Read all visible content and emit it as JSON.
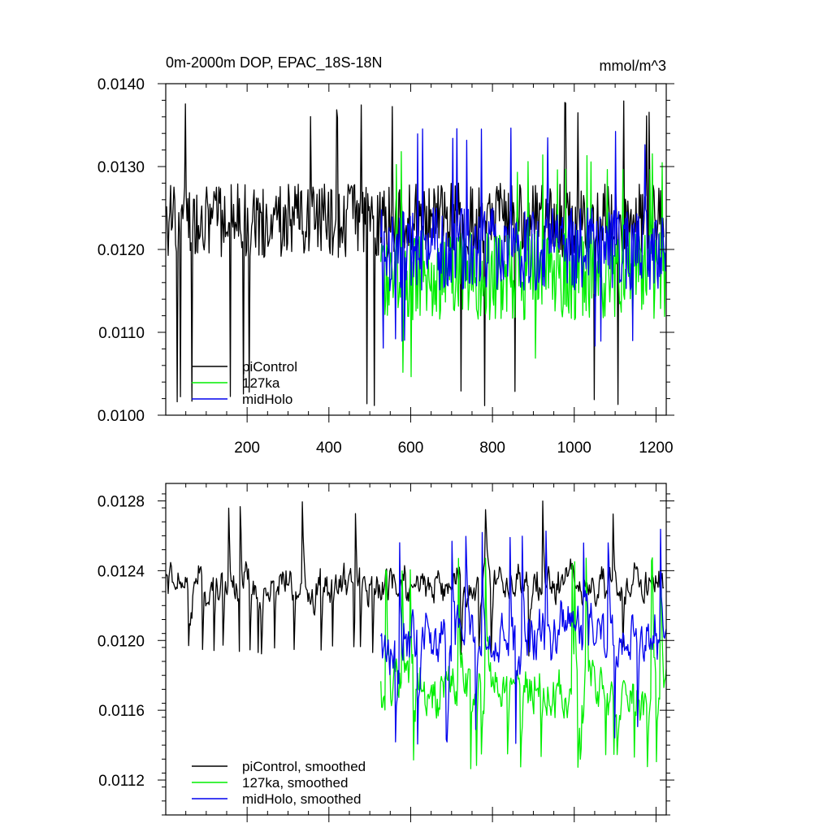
{
  "chart_data": [
    {
      "type": "line",
      "title": "0m-2000m DOP, EPAC_18S-18N",
      "units": "mmol/m^3",
      "xlim": [
        1,
        1225
      ],
      "ylim": [
        0.01,
        0.014
      ],
      "xticks": [
        200,
        400,
        600,
        800,
        1000,
        1200
      ],
      "yticks": [
        "0.0100",
        "0.0110",
        "0.0120",
        "0.0130",
        "0.0140"
      ],
      "legend_position": "bottom-left",
      "series": [
        {
          "name": "piControl",
          "color": "#000000",
          "x_start": 1,
          "x_end": 1220,
          "mean": 0.01235,
          "amplitude": 0.00045,
          "spike_min": 0.0101,
          "spike_max": 0.0138
        },
        {
          "name": "127ka",
          "color": "#00ee00",
          "x_start": 527,
          "x_end": 1225,
          "mean": 0.0117,
          "amplitude": 0.00055,
          "spike_min": 0.01045,
          "spike_max": 0.0132
        },
        {
          "name": "midHolo",
          "color": "#0000ee",
          "x_start": 527,
          "x_end": 1225,
          "mean": 0.012,
          "amplitude": 0.0005,
          "spike_min": 0.0108,
          "spike_max": 0.0135
        }
      ]
    },
    {
      "type": "line",
      "xlim": [
        1,
        1225
      ],
      "ylim": [
        0.011,
        0.0129
      ],
      "xticks": [
        200,
        400,
        600,
        800,
        1000,
        1200
      ],
      "yticks": [
        "0.0112",
        "0.0116",
        "0.0120",
        "0.0124",
        "0.0128"
      ],
      "legend_position": "bottom-left",
      "series": [
        {
          "name": "piControl, smoothed",
          "color": "#000000",
          "x_start": 1,
          "x_end": 1220,
          "mean": 0.01232,
          "amplitude": 0.00015,
          "spike_min": 0.0119,
          "spike_max": 0.0128
        },
        {
          "name": "127ka, smoothed",
          "color": "#00ee00",
          "x_start": 527,
          "x_end": 1225,
          "mean": 0.01172,
          "amplitude": 0.00022,
          "spike_min": 0.01125,
          "spike_max": 0.0125
        },
        {
          "name": "midHolo, smoothed",
          "color": "#0000ee",
          "x_start": 527,
          "x_end": 1225,
          "mean": 0.012,
          "amplitude": 0.00022,
          "spike_min": 0.0114,
          "spike_max": 0.01265
        }
      ]
    }
  ]
}
